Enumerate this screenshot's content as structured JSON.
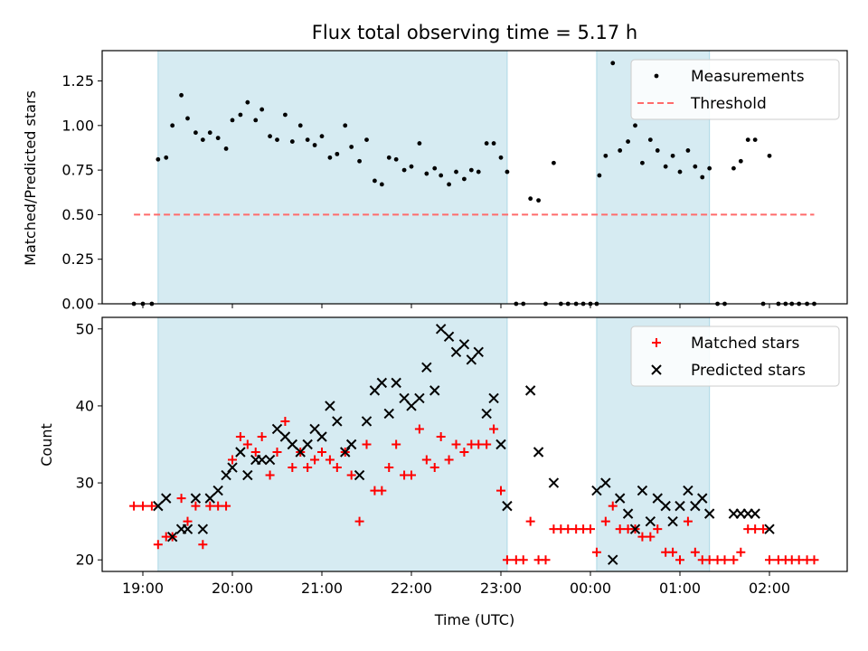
{
  "chart_data": [
    {
      "type": "scatter",
      "title": "Flux total observing time = 5.17 h",
      "xlabel": "",
      "ylabel": "Matched/Predicted stars",
      "ylim": [
        0,
        1.42
      ],
      "yticks": [
        "0.00",
        "0.25",
        "0.50",
        "0.75",
        "1.00",
        "1.25"
      ],
      "xticks": [
        "19:00",
        "20:00",
        "21:00",
        "22:00",
        "23:00",
        "00:00",
        "01:00",
        "02:00"
      ],
      "x_axis_note": "x in hours after 19:00 UTC (00:00 = 5)",
      "shaded_intervals": [
        [
          0.17,
          4.07
        ],
        [
          5.07,
          6.33
        ]
      ],
      "series": [
        {
          "name": "Measurements",
          "style": "dot",
          "color": "#000000",
          "points": [
            [
              -0.1,
              0
            ],
            [
              0,
              0
            ],
            [
              0.1,
              0
            ],
            [
              0.17,
              0.81
            ],
            [
              0.26,
              0.82
            ],
            [
              0.33,
              1.0
            ],
            [
              0.43,
              1.17
            ],
            [
              0.5,
              1.04
            ],
            [
              0.59,
              0.96
            ],
            [
              0.67,
              0.92
            ],
            [
              0.75,
              0.96
            ],
            [
              0.84,
              0.93
            ],
            [
              0.93,
              0.87
            ],
            [
              1.0,
              1.03
            ],
            [
              1.09,
              1.06
            ],
            [
              1.17,
              1.13
            ],
            [
              1.26,
              1.03
            ],
            [
              1.33,
              1.09
            ],
            [
              1.42,
              0.94
            ],
            [
              1.5,
              0.92
            ],
            [
              1.59,
              1.06
            ],
            [
              1.67,
              0.91
            ],
            [
              1.76,
              1.0
            ],
            [
              1.84,
              0.92
            ],
            [
              1.92,
              0.89
            ],
            [
              2.0,
              0.94
            ],
            [
              2.09,
              0.82
            ],
            [
              2.17,
              0.84
            ],
            [
              2.26,
              1.0
            ],
            [
              2.33,
              0.88
            ],
            [
              2.42,
              0.8
            ],
            [
              2.5,
              0.92
            ],
            [
              2.59,
              0.69
            ],
            [
              2.67,
              0.67
            ],
            [
              2.75,
              0.82
            ],
            [
              2.83,
              0.81
            ],
            [
              2.92,
              0.75
            ],
            [
              3.0,
              0.77
            ],
            [
              3.09,
              0.9
            ],
            [
              3.17,
              0.73
            ],
            [
              3.26,
              0.76
            ],
            [
              3.33,
              0.72
            ],
            [
              3.42,
              0.67
            ],
            [
              3.5,
              0.74
            ],
            [
              3.59,
              0.7
            ],
            [
              3.67,
              0.75
            ],
            [
              3.75,
              0.74
            ],
            [
              3.84,
              0.9
            ],
            [
              3.92,
              0.9
            ],
            [
              4.0,
              0.82
            ],
            [
              4.07,
              0.74
            ],
            [
              4.17,
              0
            ],
            [
              4.25,
              0
            ],
            [
              4.33,
              0.59
            ],
            [
              4.42,
              0.58
            ],
            [
              4.5,
              0
            ],
            [
              4.59,
              0.79
            ],
            [
              4.67,
              0
            ],
            [
              4.75,
              0
            ],
            [
              4.84,
              0
            ],
            [
              4.92,
              0
            ],
            [
              5.0,
              0
            ],
            [
              5.07,
              0
            ],
            [
              5.1,
              0.72
            ],
            [
              5.17,
              0.83
            ],
            [
              5.25,
              1.35
            ],
            [
              5.33,
              0.86
            ],
            [
              5.42,
              0.91
            ],
            [
              5.5,
              1.0
            ],
            [
              5.58,
              0.79
            ],
            [
              5.67,
              0.92
            ],
            [
              5.75,
              0.86
            ],
            [
              5.84,
              0.77
            ],
            [
              5.92,
              0.83
            ],
            [
              6.0,
              0.74
            ],
            [
              6.09,
              0.86
            ],
            [
              6.17,
              0.77
            ],
            [
              6.25,
              0.71
            ],
            [
              6.33,
              0.76
            ],
            [
              6.42,
              0
            ],
            [
              6.5,
              0
            ],
            [
              6.6,
              0.76
            ],
            [
              6.68,
              0.8
            ],
            [
              6.76,
              0.92
            ],
            [
              6.84,
              0.92
            ],
            [
              6.93,
              0
            ],
            [
              7.0,
              0.83
            ],
            [
              7.1,
              0
            ],
            [
              7.18,
              0
            ],
            [
              7.25,
              0
            ],
            [
              7.33,
              0
            ],
            [
              7.42,
              0
            ],
            [
              7.5,
              0
            ]
          ]
        },
        {
          "name": "Threshold",
          "style": "dashed-line",
          "color": "#ff6b6b",
          "points": [
            [
              -0.1,
              0.5
            ],
            [
              7.5,
              0.5
            ]
          ]
        }
      ],
      "legend": {
        "placement": "top-right",
        "entries": [
          "Measurements",
          "Threshold"
        ]
      }
    },
    {
      "type": "scatter",
      "title": "",
      "xlabel": "Time (UTC)",
      "ylabel": "Count",
      "ylim": [
        18.5,
        51.5
      ],
      "yticks": [
        "20",
        "30",
        "40",
        "50"
      ],
      "xticks": [
        "19:00",
        "20:00",
        "21:00",
        "22:00",
        "23:00",
        "00:00",
        "01:00",
        "02:00"
      ],
      "shaded_intervals": [
        [
          0.17,
          4.07
        ],
        [
          5.07,
          6.33
        ]
      ],
      "series": [
        {
          "name": "Matched stars",
          "style": "plus",
          "color": "#ff0000",
          "points": [
            [
              -0.1,
              27
            ],
            [
              0,
              27
            ],
            [
              0.1,
              27
            ],
            [
              0.17,
              22
            ],
            [
              0.26,
              23
            ],
            [
              0.33,
              23
            ],
            [
              0.43,
              28
            ],
            [
              0.5,
              25
            ],
            [
              0.59,
              27
            ],
            [
              0.67,
              22
            ],
            [
              0.75,
              27
            ],
            [
              0.84,
              27
            ],
            [
              0.93,
              27
            ],
            [
              1.0,
              33
            ],
            [
              1.09,
              36
            ],
            [
              1.17,
              35
            ],
            [
              1.26,
              34
            ],
            [
              1.33,
              36
            ],
            [
              1.42,
              31
            ],
            [
              1.5,
              34
            ],
            [
              1.59,
              38
            ],
            [
              1.67,
              32
            ],
            [
              1.76,
              34
            ],
            [
              1.84,
              32
            ],
            [
              1.92,
              33
            ],
            [
              2.0,
              34
            ],
            [
              2.09,
              33
            ],
            [
              2.17,
              32
            ],
            [
              2.26,
              34
            ],
            [
              2.33,
              31
            ],
            [
              2.42,
              25
            ],
            [
              2.5,
              35
            ],
            [
              2.59,
              29
            ],
            [
              2.67,
              29
            ],
            [
              2.75,
              32
            ],
            [
              2.83,
              35
            ],
            [
              2.92,
              31
            ],
            [
              3.0,
              31
            ],
            [
              3.09,
              37
            ],
            [
              3.17,
              33
            ],
            [
              3.26,
              32
            ],
            [
              3.33,
              36
            ],
            [
              3.42,
              33
            ],
            [
              3.5,
              35
            ],
            [
              3.59,
              34
            ],
            [
              3.67,
              35
            ],
            [
              3.75,
              35
            ],
            [
              3.84,
              35
            ],
            [
              3.92,
              37
            ],
            [
              4.0,
              29
            ],
            [
              4.07,
              20
            ],
            [
              4.17,
              20
            ],
            [
              4.25,
              20
            ],
            [
              4.33,
              25
            ],
            [
              4.42,
              20
            ],
            [
              4.5,
              20
            ],
            [
              4.59,
              24
            ],
            [
              4.67,
              24
            ],
            [
              4.75,
              24
            ],
            [
              4.84,
              24
            ],
            [
              4.92,
              24
            ],
            [
              5.0,
              24
            ],
            [
              5.07,
              21
            ],
            [
              5.17,
              25
            ],
            [
              5.25,
              27
            ],
            [
              5.33,
              24
            ],
            [
              5.42,
              24
            ],
            [
              5.5,
              24
            ],
            [
              5.58,
              23
            ],
            [
              5.67,
              23
            ],
            [
              5.75,
              24
            ],
            [
              5.84,
              21
            ],
            [
              5.92,
              21
            ],
            [
              6.0,
              20
            ],
            [
              6.09,
              25
            ],
            [
              6.17,
              21
            ],
            [
              6.25,
              20
            ],
            [
              6.33,
              20
            ],
            [
              6.42,
              20
            ],
            [
              6.5,
              20
            ],
            [
              6.6,
              20
            ],
            [
              6.68,
              21
            ],
            [
              6.76,
              24
            ],
            [
              6.84,
              24
            ],
            [
              6.93,
              24
            ],
            [
              7.0,
              20
            ],
            [
              7.1,
              20
            ],
            [
              7.18,
              20
            ],
            [
              7.25,
              20
            ],
            [
              7.33,
              20
            ],
            [
              7.42,
              20
            ],
            [
              7.5,
              20
            ]
          ]
        },
        {
          "name": "Predicted stars",
          "style": "cross",
          "color": "#000000",
          "points": [
            [
              0.17,
              27
            ],
            [
              0.26,
              28
            ],
            [
              0.33,
              23
            ],
            [
              0.43,
              24
            ],
            [
              0.5,
              24
            ],
            [
              0.59,
              28
            ],
            [
              0.67,
              24
            ],
            [
              0.75,
              28
            ],
            [
              0.84,
              29
            ],
            [
              0.93,
              31
            ],
            [
              1.0,
              32
            ],
            [
              1.09,
              34
            ],
            [
              1.17,
              31
            ],
            [
              1.26,
              33
            ],
            [
              1.33,
              33
            ],
            [
              1.42,
              33
            ],
            [
              1.5,
              37
            ],
            [
              1.59,
              36
            ],
            [
              1.67,
              35
            ],
            [
              1.76,
              34
            ],
            [
              1.84,
              35
            ],
            [
              1.92,
              37
            ],
            [
              2.0,
              36
            ],
            [
              2.09,
              40
            ],
            [
              2.17,
              38
            ],
            [
              2.26,
              34
            ],
            [
              2.33,
              35
            ],
            [
              2.42,
              31
            ],
            [
              2.5,
              38
            ],
            [
              2.59,
              42
            ],
            [
              2.67,
              43
            ],
            [
              2.75,
              39
            ],
            [
              2.83,
              43
            ],
            [
              2.92,
              41
            ],
            [
              3.0,
              40
            ],
            [
              3.09,
              41
            ],
            [
              3.17,
              45
            ],
            [
              3.26,
              42
            ],
            [
              3.33,
              50
            ],
            [
              3.42,
              49
            ],
            [
              3.5,
              47
            ],
            [
              3.59,
              48
            ],
            [
              3.67,
              46
            ],
            [
              3.75,
              47
            ],
            [
              3.84,
              39
            ],
            [
              3.92,
              41
            ],
            [
              4.0,
              35
            ],
            [
              4.07,
              27
            ],
            [
              4.33,
              42
            ],
            [
              4.42,
              34
            ],
            [
              4.59,
              30
            ],
            [
              5.07,
              29
            ],
            [
              5.17,
              30
            ],
            [
              5.25,
              20
            ],
            [
              5.33,
              28
            ],
            [
              5.42,
              26
            ],
            [
              5.5,
              24
            ],
            [
              5.58,
              29
            ],
            [
              5.67,
              25
            ],
            [
              5.75,
              28
            ],
            [
              5.84,
              27
            ],
            [
              5.92,
              25
            ],
            [
              6.0,
              27
            ],
            [
              6.09,
              29
            ],
            [
              6.17,
              27
            ],
            [
              6.25,
              28
            ],
            [
              6.33,
              26
            ],
            [
              6.6,
              26
            ],
            [
              6.68,
              26
            ],
            [
              6.76,
              26
            ],
            [
              6.84,
              26
            ],
            [
              7.0,
              24
            ]
          ]
        }
      ],
      "legend": {
        "placement": "top-right",
        "entries": [
          "Matched stars",
          "Predicted stars"
        ]
      }
    }
  ]
}
